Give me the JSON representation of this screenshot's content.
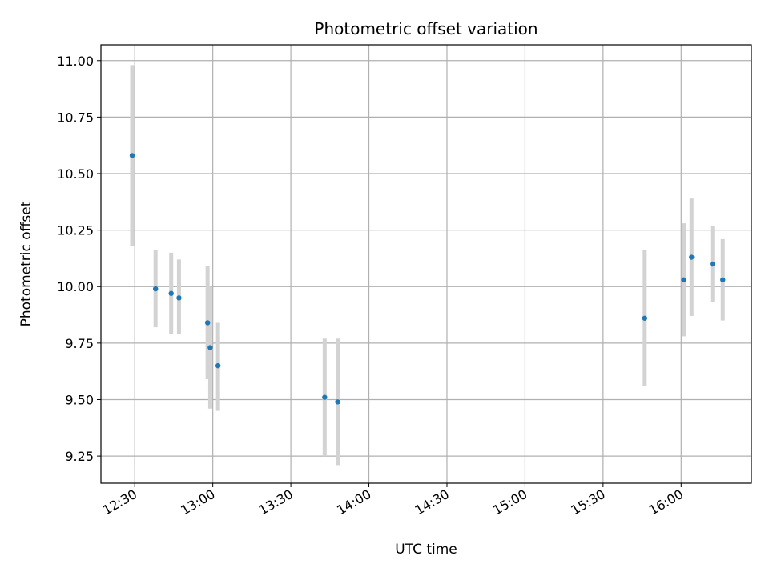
{
  "chart_data": {
    "type": "scatter",
    "title": "Photometric offset variation",
    "xlabel": "UTC time",
    "ylabel": "Photometric offset",
    "x_ticks": [
      "12:30",
      "13:00",
      "13:30",
      "14:00",
      "14:30",
      "15:00",
      "15:30",
      "16:00"
    ],
    "x_tick_minutes": [
      750,
      780,
      810,
      840,
      870,
      900,
      930,
      960
    ],
    "y_ticks": [
      "9.25",
      "9.50",
      "9.75",
      "10.00",
      "10.25",
      "10.50",
      "10.75",
      "11.00"
    ],
    "y_tick_values": [
      9.25,
      9.5,
      9.75,
      10.0,
      10.25,
      10.5,
      10.75,
      11.0
    ],
    "xlim_minutes": [
      737,
      987
    ],
    "ylim": [
      9.13,
      11.07
    ],
    "grid": true,
    "point_color": "#1f77b4",
    "errorbar_color": "#d3d3d3",
    "series": [
      {
        "x_time": [
          "12:29",
          "12:38",
          "12:44",
          "12:47",
          "12:58",
          "12:59",
          "13:02",
          "13:43",
          "13:48",
          "15:46",
          "16:01",
          "16:04",
          "16:12",
          "16:16"
        ],
        "x_minutes": [
          749,
          758,
          764,
          767,
          778,
          779,
          782,
          823,
          828,
          946,
          961,
          964,
          972,
          976
        ],
        "y": [
          10.58,
          9.99,
          9.97,
          9.95,
          9.84,
          9.73,
          9.65,
          9.51,
          9.49,
          9.86,
          10.03,
          10.13,
          10.1,
          10.03
        ],
        "y_err_low": [
          10.18,
          9.82,
          9.79,
          9.79,
          9.59,
          9.46,
          9.45,
          9.25,
          9.21,
          9.56,
          9.78,
          9.87,
          9.93,
          9.85
        ],
        "y_err_high": [
          10.98,
          10.16,
          10.15,
          10.12,
          10.09,
          10.0,
          9.84,
          9.77,
          9.77,
          10.16,
          10.28,
          10.39,
          10.27,
          10.21
        ]
      }
    ]
  }
}
